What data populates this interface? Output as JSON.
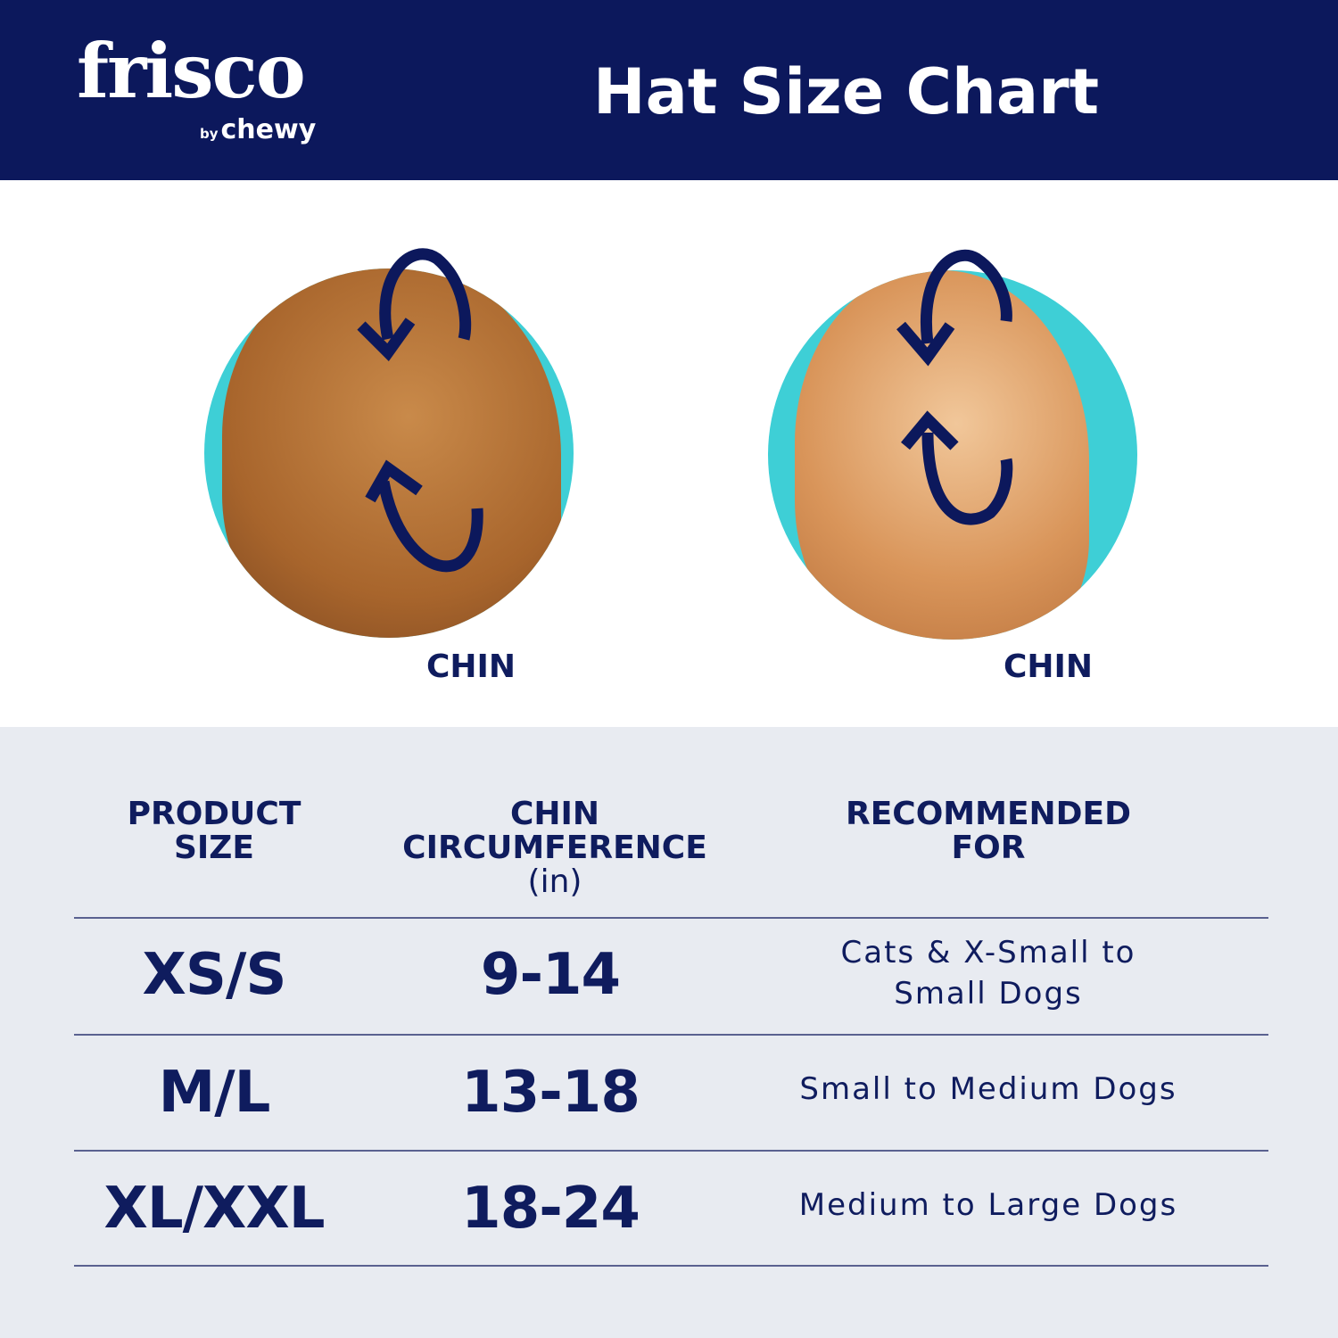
{
  "header": {
    "logo_text": "frisco",
    "logo_sub_by": "by",
    "logo_sub_brand": "chewy",
    "title": "Hat Size Chart"
  },
  "illustrations": [
    {
      "animal": "dog",
      "label": "CHIN",
      "icon": "circular-arrow-measure-icon"
    },
    {
      "animal": "cat",
      "label": "CHIN",
      "icon": "circular-arrow-measure-icon"
    }
  ],
  "colors": {
    "navy": "#0c185c",
    "teal": "#3ecfd6",
    "table_bg": "#e8ebf1"
  },
  "table": {
    "headers": [
      {
        "line1": "PRODUCT",
        "line2": "SIZE",
        "unit": ""
      },
      {
        "line1": "CHIN",
        "line2": "CIRCUMFERENCE",
        "unit": "(in)"
      },
      {
        "line1": "RECOMMENDED",
        "line2": "FOR",
        "unit": ""
      }
    ],
    "rows": [
      {
        "size": "XS/S",
        "range": "9-14",
        "recommended_line1": "Cats & X-Small to",
        "recommended_line2": "Small Dogs"
      },
      {
        "size": "M/L",
        "range": "13-18",
        "recommended_line1": "Small to Medium Dogs",
        "recommended_line2": ""
      },
      {
        "size": "XL/XXL",
        "range": "18-24",
        "recommended_line1": "Medium to Large Dogs",
        "recommended_line2": ""
      }
    ]
  }
}
